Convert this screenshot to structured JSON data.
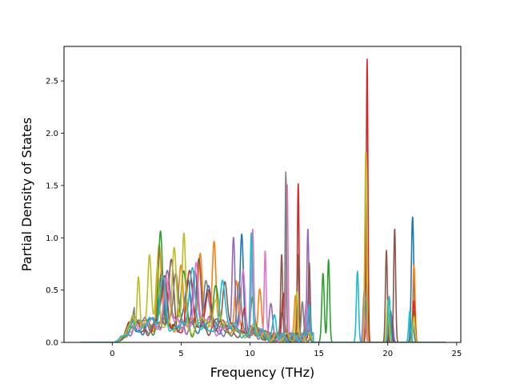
{
  "chart_data": {
    "type": "line",
    "xlabel": "Frequency (THz)",
    "ylabel": "Partial Density of States",
    "xlim": [
      -3.5,
      25.3
    ],
    "ylim": [
      0,
      2.83
    ],
    "xticks": [
      0,
      5,
      10,
      15,
      20,
      25
    ],
    "xtick_labels": [
      "0",
      "5",
      "10",
      "15",
      "20",
      "25"
    ],
    "yticks": [
      0.0,
      0.5,
      1.0,
      1.5,
      2.0,
      2.5
    ],
    "ytick_labels": [
      "0.0",
      "0.5",
      "1.0",
      "1.5",
      "2.0",
      "2.5"
    ],
    "grid": false,
    "legend": "none",
    "colors": [
      "#1f77b4",
      "#ff7f0e",
      "#2ca02c",
      "#d62728",
      "#9467bd",
      "#8c564b",
      "#e377c2",
      "#7f7f7f",
      "#bcbd22",
      "#17becf"
    ],
    "x_start": -2.3,
    "x_end": 24.2,
    "series": [
      {
        "color": "#1f77b4",
        "peaks": [
          [
            3.6,
            0.55,
            0.18
          ],
          [
            5.5,
            0.45,
            0.2
          ],
          [
            7.0,
            0.35,
            0.2
          ],
          [
            9.4,
            0.96,
            0.12
          ],
          [
            12.3,
            0.25,
            0.12
          ],
          [
            14.1,
            0.3,
            0.1
          ],
          [
            18.4,
            0.65,
            0.1
          ],
          [
            20.2,
            0.3,
            0.1
          ],
          [
            21.8,
            1.2,
            0.09
          ]
        ]
      },
      {
        "color": "#ff7f0e",
        "peaks": [
          [
            3.4,
            0.78,
            0.16
          ],
          [
            5.0,
            0.6,
            0.16
          ],
          [
            6.4,
            0.72,
            0.15
          ],
          [
            7.4,
            0.8,
            0.13
          ],
          [
            9.0,
            0.5,
            0.13
          ],
          [
            10.7,
            0.4,
            0.12
          ],
          [
            13.3,
            0.42,
            0.08
          ],
          [
            18.4,
            1.5,
            0.07
          ],
          [
            21.9,
            0.74,
            0.08
          ]
        ]
      },
      {
        "color": "#2ca02c",
        "peaks": [
          [
            3.5,
            0.95,
            0.14
          ],
          [
            5.2,
            0.5,
            0.18
          ],
          [
            7.5,
            0.3,
            0.2
          ],
          [
            10.2,
            0.35,
            0.12
          ],
          [
            15.3,
            0.66,
            0.09
          ],
          [
            15.7,
            0.79,
            0.08
          ],
          [
            18.4,
            1.1,
            0.08
          ],
          [
            21.9,
            0.3,
            0.08
          ]
        ]
      },
      {
        "color": "#d62728",
        "peaks": [
          [
            3.8,
            0.45,
            0.2
          ],
          [
            5.6,
            0.5,
            0.18
          ],
          [
            7.0,
            0.42,
            0.17
          ],
          [
            9.6,
            0.28,
            0.14
          ],
          [
            12.4,
            0.4,
            0.1
          ],
          [
            13.5,
            1.51,
            0.06
          ],
          [
            14.3,
            0.25,
            0.07
          ],
          [
            18.5,
            2.71,
            0.06
          ],
          [
            20.2,
            0.2,
            0.08
          ],
          [
            21.9,
            0.4,
            0.08
          ]
        ]
      },
      {
        "color": "#9467bd",
        "peaks": [
          [
            4.0,
            0.6,
            0.18
          ],
          [
            6.0,
            0.55,
            0.18
          ],
          [
            8.8,
            0.86,
            0.1
          ],
          [
            11.5,
            0.3,
            0.12
          ],
          [
            14.2,
            1.0,
            0.07
          ],
          [
            18.3,
            0.5,
            0.09
          ],
          [
            20.3,
            0.25,
            0.09
          ]
        ]
      },
      {
        "color": "#8c564b",
        "peaks": [
          [
            4.3,
            0.62,
            0.18
          ],
          [
            6.3,
            0.6,
            0.16
          ],
          [
            8.2,
            0.4,
            0.16
          ],
          [
            12.3,
            0.82,
            0.07
          ],
          [
            13.5,
            0.8,
            0.06
          ],
          [
            14.3,
            0.75,
            0.07
          ],
          [
            19.9,
            0.88,
            0.07
          ],
          [
            20.5,
            1.09,
            0.07
          ]
        ]
      },
      {
        "color": "#e377c2",
        "peaks": [
          [
            3.9,
            0.5,
            0.2
          ],
          [
            6.1,
            0.62,
            0.16
          ],
          [
            9.5,
            0.6,
            0.14
          ],
          [
            10.2,
            1.0,
            0.08
          ],
          [
            11.1,
            0.8,
            0.07
          ],
          [
            12.7,
            1.5,
            0.06
          ],
          [
            14.1,
            0.35,
            0.08
          ],
          [
            18.3,
            0.3,
            0.09
          ]
        ]
      },
      {
        "color": "#7f7f7f",
        "peaks": [
          [
            4.6,
            0.55,
            0.2
          ],
          [
            6.8,
            0.5,
            0.18
          ],
          [
            9.2,
            0.45,
            0.14
          ],
          [
            12.6,
            1.62,
            0.05
          ],
          [
            13.8,
            0.3,
            0.08
          ],
          [
            18.4,
            0.4,
            0.08
          ],
          [
            21.8,
            0.2,
            0.08
          ]
        ]
      },
      {
        "color": "#bcbd22",
        "peaks": [
          [
            1.9,
            0.54,
            0.1
          ],
          [
            2.7,
            0.6,
            0.12
          ],
          [
            3.3,
            0.62,
            0.12
          ],
          [
            4.5,
            0.7,
            0.15
          ],
          [
            5.2,
            0.85,
            0.12
          ],
          [
            7.5,
            0.3,
            0.2
          ],
          [
            13.4,
            0.4,
            0.07
          ],
          [
            18.4,
            1.83,
            0.06
          ],
          [
            20.0,
            0.4,
            0.08
          ],
          [
            21.9,
            0.25,
            0.08
          ]
        ]
      },
      {
        "color": "#17becf",
        "peaks": [
          [
            3.7,
            0.42,
            0.2
          ],
          [
            5.8,
            0.45,
            0.2
          ],
          [
            8.0,
            0.35,
            0.18
          ],
          [
            10.1,
            0.9,
            0.08
          ],
          [
            11.8,
            0.2,
            0.12
          ],
          [
            14.3,
            0.35,
            0.08
          ],
          [
            17.8,
            0.68,
            0.08
          ],
          [
            20.1,
            0.44,
            0.08
          ],
          [
            21.6,
            0.3,
            0.08
          ]
        ]
      }
    ]
  }
}
